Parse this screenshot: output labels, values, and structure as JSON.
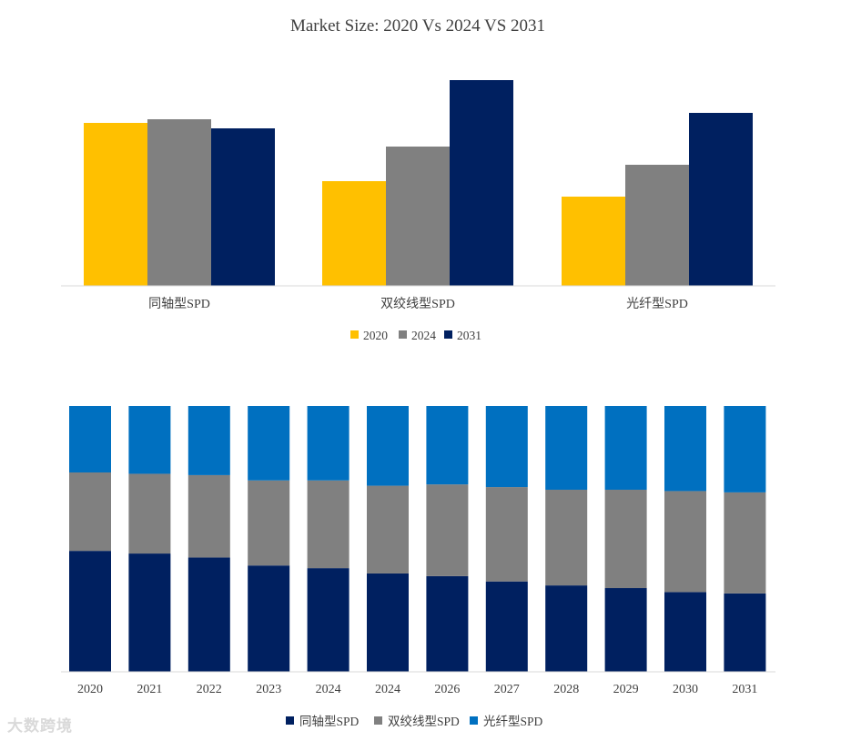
{
  "watermark": "大数跨境",
  "colors": {
    "y2020": "#FFC000",
    "y2024": "#808080",
    "y2031": "#002060",
    "coax": "#002060",
    "twisted": "#808080",
    "fiber": "#0070C0",
    "axis": "#d9d9d9"
  },
  "chart_data": [
    {
      "type": "bar",
      "title": "Market Size: 2020 Vs 2024 VS 2031",
      "categories": [
        "同轴型SPD",
        "双绞线型SPD",
        "光纤型SPD"
      ],
      "series": [
        {
          "name": "2020",
          "values": [
            179,
            115,
            98
          ]
        },
        {
          "name": "2024",
          "values": [
            183,
            153,
            133
          ]
        },
        {
          "name": "2031",
          "values": [
            173,
            226,
            190
          ]
        }
      ],
      "ylim": [
        0,
        226
      ],
      "legend": "bottom",
      "grid": false
    },
    {
      "type": "bar",
      "stacked": "percent",
      "categories": [
        "2020",
        "2021",
        "2022",
        "2023",
        "2024",
        "2024",
        "2026",
        "2027",
        "2028",
        "2029",
        "2030",
        "2031"
      ],
      "series": [
        {
          "name": "同轴型SPD",
          "values": [
            45.5,
            44.5,
            43.0,
            40.0,
            39.0,
            37.0,
            36.0,
            34.0,
            32.5,
            31.5,
            30.0,
            29.5
          ]
        },
        {
          "name": "双绞线型SPD",
          "values": [
            29.5,
            30.0,
            31.0,
            32.0,
            33.0,
            33.0,
            34.5,
            35.5,
            36.0,
            37.0,
            38.0,
            38.0
          ]
        },
        {
          "name": "光纤型SPD",
          "values": [
            25.0,
            25.5,
            26.0,
            28.0,
            28.0,
            30.0,
            29.5,
            30.5,
            31.5,
            31.5,
            32.0,
            32.5
          ]
        }
      ],
      "ylim": [
        0,
        100
      ],
      "legend": "bottom",
      "grid": false
    }
  ]
}
